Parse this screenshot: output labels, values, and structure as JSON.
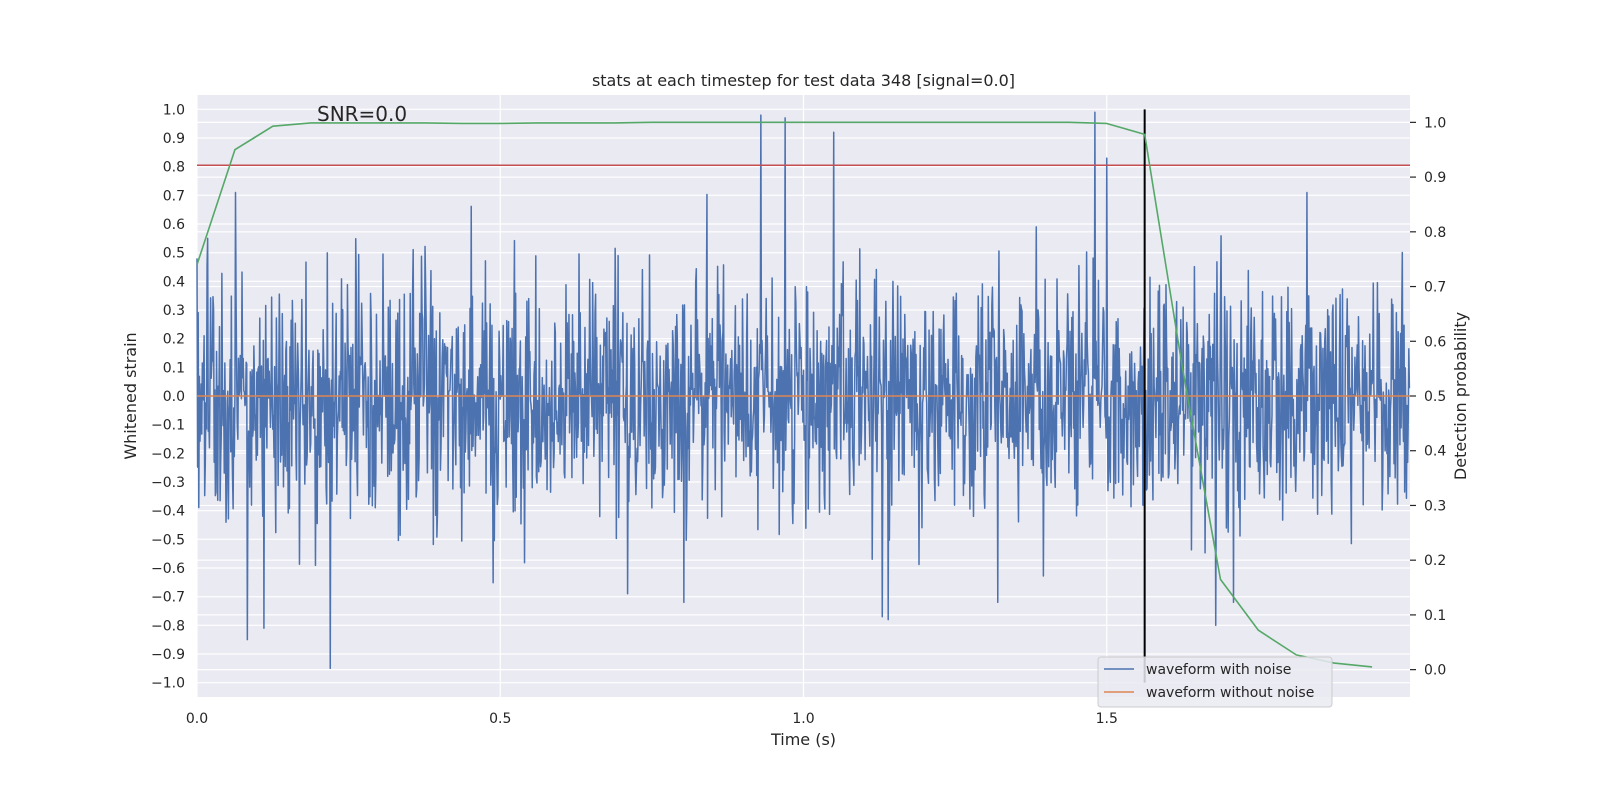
{
  "chart_data": {
    "type": "line",
    "title": "stats at each timestep for test data 348 [signal=0.0]",
    "annotation": "SNR=0.0",
    "xlabel": "Time (s)",
    "ylabel": "Whitened strain",
    "y2label": "Detection probability",
    "xlim": [
      0.0,
      2.0
    ],
    "ylim": [
      -1.05,
      1.05
    ],
    "y2lim": [
      -0.05,
      1.05
    ],
    "xticks": [
      0.0,
      0.5,
      1.0,
      1.5
    ],
    "xtick_labels": [
      "0.0",
      "0.5",
      "1.0",
      "1.5"
    ],
    "yticks": [
      1.0,
      0.9,
      0.8,
      0.7,
      0.6,
      0.5,
      0.4,
      0.3,
      0.2,
      0.1,
      0.0,
      -0.1,
      -0.2,
      -0.3,
      -0.4,
      -0.5,
      -0.6,
      -0.7,
      -0.8,
      -0.9,
      -1.0
    ],
    "ytick_labels": [
      "1.0",
      "0.9",
      "0.8",
      "0.7",
      "0.6",
      "0.5",
      "0.4",
      "0.3",
      "0.2",
      "0.1",
      "0.0",
      "−0.1",
      "−0.2",
      "−0.3",
      "−0.4",
      "−0.5",
      "−0.6",
      "−0.7",
      "−0.8",
      "−0.9",
      "−1.0"
    ],
    "y2ticks": [
      1.0,
      0.9,
      0.8,
      0.7,
      0.6,
      0.5,
      0.4,
      0.3,
      0.2,
      0.1,
      0.0
    ],
    "y2tick_labels": [
      "1.0",
      "0.9",
      "0.8",
      "0.7",
      "0.6",
      "0.5",
      "0.4",
      "0.3",
      "0.2",
      "0.1",
      "0.0"
    ],
    "series": [
      {
        "name": "waveform with noise",
        "color": "#4c72b0",
        "axis": "left",
        "kind": "noise",
        "n_samples": 2048,
        "duration": 2.0,
        "std": 0.21,
        "seed": 348,
        "spikes": [
          [
            0.0,
            0.48
          ],
          [
            0.018,
            0.55
          ],
          [
            0.063,
            0.71
          ],
          [
            0.083,
            -0.85
          ],
          [
            0.11,
            -0.81
          ],
          [
            0.22,
            -0.95
          ],
          [
            0.71,
            -0.69
          ],
          [
            0.93,
            0.98
          ],
          [
            0.97,
            0.97
          ],
          [
            1.05,
            0.92
          ],
          [
            1.13,
            -0.77
          ],
          [
            1.14,
            -0.78
          ],
          [
            1.32,
            -0.72
          ],
          [
            1.48,
            0.99
          ],
          [
            1.5,
            0.83
          ],
          [
            1.68,
            -0.8
          ],
          [
            1.83,
            0.71
          ]
        ]
      },
      {
        "name": "waveform without noise",
        "color": "#dd8452",
        "axis": "left",
        "x": [
          0.0,
          2.0
        ],
        "y": [
          0.0,
          0.0
        ]
      },
      {
        "name": "detection probability",
        "color": "#55a868",
        "axis": "right",
        "x": [
          0.0,
          0.0625,
          0.125,
          0.1875,
          0.25,
          0.3125,
          0.375,
          0.4375,
          0.5,
          0.5625,
          0.625,
          0.6875,
          0.75,
          0.8125,
          0.875,
          0.9375,
          1.0,
          1.0625,
          1.125,
          1.1875,
          1.25,
          1.3125,
          1.375,
          1.4375,
          1.5,
          1.5625,
          1.625,
          1.6875,
          1.75,
          1.8125,
          1.875,
          1.9375
        ],
        "y": [
          0.74,
          0.95,
          0.993,
          0.999,
          0.999,
          0.999,
          0.999,
          0.998,
          0.998,
          0.999,
          0.999,
          0.999,
          1.0,
          1.0,
          1.0,
          1.0,
          1.0,
          1.0,
          1.0,
          1.0,
          1.0,
          1.0,
          1.0,
          1.0,
          0.998,
          0.978,
          0.55,
          0.165,
          0.072,
          0.027,
          0.012,
          0.005
        ]
      }
    ],
    "hlines": [
      {
        "axis": "left",
        "y": 0.805,
        "color": "#c44e52"
      }
    ],
    "vlines": [
      {
        "x": 1.5625,
        "y_from": -1.0,
        "y_to": 1.0,
        "color": "#000000"
      }
    ],
    "legend": {
      "location": "lower-right",
      "entries": [
        {
          "label": "waveform with noise",
          "color": "#4c72b0"
        },
        {
          "label": "waveform without noise",
          "color": "#dd8452"
        }
      ]
    },
    "background": "#eaeaf2",
    "grid_color": "#ffffff"
  }
}
